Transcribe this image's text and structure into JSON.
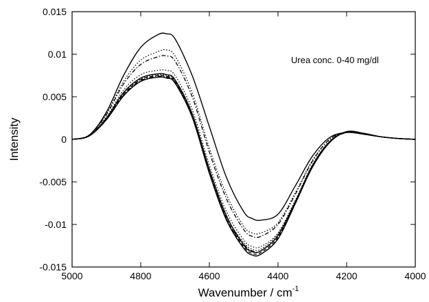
{
  "chart_data": {
    "type": "line",
    "title": "",
    "xlabel": "Wavenumber / cm",
    "xlabel_superscript": "-1",
    "ylabel": "Intensity",
    "annotation": "Urea conc. 0-40 mg/dl",
    "xlim": [
      5000,
      4000
    ],
    "ylim": [
      -0.015,
      0.015
    ],
    "x_reversed": true,
    "grid": false,
    "legend": "none",
    "x_ticks": [
      5000,
      4800,
      4600,
      4400,
      4200,
      4000
    ],
    "x_tick_labels": [
      "5000",
      "4800",
      "4600",
      "4400",
      "4200",
      "4000"
    ],
    "y_ticks": [
      0.015,
      0.01,
      0.005,
      0,
      -0.005,
      -0.01,
      -0.015
    ],
    "y_tick_labels": [
      "0.015",
      "0.01",
      "0.005",
      "0",
      "-0.005",
      "-0.01",
      "-0.015"
    ],
    "x": [
      5000,
      4950,
      4900,
      4850,
      4800,
      4750,
      4725,
      4700,
      4650,
      4600,
      4550,
      4500,
      4475,
      4450,
      4400,
      4350,
      4300,
      4250,
      4200,
      4150,
      4100,
      4050,
      4000
    ],
    "series": [
      {
        "style": "solid",
        "values": [
          0,
          0.0005,
          0.0032,
          0.0075,
          0.0108,
          0.0123,
          0.0124,
          0.0118,
          0.0075,
          0.0015,
          -0.0045,
          -0.0085,
          -0.0093,
          -0.0095,
          -0.0088,
          -0.0055,
          -0.002,
          0.0002,
          0.0008,
          0.0006,
          0.0003,
          0.0001,
          0
        ]
      },
      {
        "style": "dotted",
        "values": [
          0,
          0.0005,
          0.003,
          0.0068,
          0.0093,
          0.0103,
          0.0105,
          0.0098,
          0.0055,
          -0.001,
          -0.0065,
          -0.0102,
          -0.011,
          -0.011,
          -0.0098,
          -0.0063,
          -0.0025,
          0.0,
          0.0008,
          0.0006,
          0.0003,
          0.0001,
          0
        ]
      },
      {
        "style": "dashdot",
        "values": [
          0,
          0.0005,
          0.0029,
          0.0065,
          0.0088,
          0.0097,
          0.0098,
          0.0092,
          0.005,
          -0.0015,
          -0.007,
          -0.0106,
          -0.0114,
          -0.0114,
          -0.01,
          -0.0065,
          -0.0026,
          0.0,
          0.0008,
          0.0006,
          0.0003,
          0.0001,
          0
        ]
      },
      {
        "style": "dotted",
        "values": [
          0,
          0.0004,
          0.0026,
          0.0058,
          0.0076,
          0.0081,
          0.0081,
          0.0075,
          0.0035,
          -0.003,
          -0.0085,
          -0.0118,
          -0.0126,
          -0.0126,
          -0.011,
          -0.0072,
          -0.003,
          -0.0002,
          0.0008,
          0.0006,
          0.0003,
          0.0001,
          0
        ]
      },
      {
        "style": "solid",
        "values": [
          0,
          0.0004,
          0.0025,
          0.0055,
          0.0072,
          0.0077,
          0.0076,
          0.007,
          0.003,
          -0.0035,
          -0.009,
          -0.0124,
          -0.0132,
          -0.0131,
          -0.0113,
          -0.0074,
          -0.0031,
          -0.0003,
          0.0009,
          0.0007,
          0.0003,
          0.0001,
          0
        ]
      },
      {
        "style": "dashed",
        "values": [
          0,
          0.0004,
          0.0024,
          0.0053,
          0.007,
          0.0075,
          0.0074,
          0.0068,
          0.0028,
          -0.0038,
          -0.0093,
          -0.0126,
          -0.0134,
          -0.0133,
          -0.0115,
          -0.0075,
          -0.0032,
          -0.0003,
          0.0009,
          0.0007,
          0.0003,
          0.0001,
          0
        ]
      },
      {
        "style": "solid",
        "values": [
          0,
          0.0004,
          0.0023,
          0.0051,
          0.0068,
          0.0073,
          0.0072,
          0.0066,
          0.0026,
          -0.004,
          -0.0095,
          -0.0128,
          -0.0136,
          -0.0135,
          -0.0117,
          -0.0076,
          -0.0033,
          -0.0004,
          0.0009,
          0.0007,
          0.0003,
          0.0001,
          0
        ]
      },
      {
        "style": "dotted",
        "values": [
          0,
          0.0004,
          0.0024,
          0.0054,
          0.0071,
          0.0076,
          0.0075,
          0.0069,
          0.0029,
          -0.0036,
          -0.0091,
          -0.0121,
          -0.0129,
          -0.0129,
          -0.0111,
          -0.0073,
          -0.0031,
          -0.0003,
          0.0008,
          0.0006,
          0.0003,
          0.0001,
          0
        ]
      },
      {
        "style": "dashdot",
        "values": [
          0,
          0.0004,
          0.0023,
          0.0052,
          0.0069,
          0.0074,
          0.0073,
          0.0067,
          0.0027,
          -0.0039,
          -0.0094,
          -0.0123,
          -0.0131,
          -0.0131,
          -0.0113,
          -0.0074,
          -0.0032,
          -0.0003,
          0.0008,
          0.0006,
          0.0003,
          0.0001,
          0
        ]
      }
    ]
  }
}
